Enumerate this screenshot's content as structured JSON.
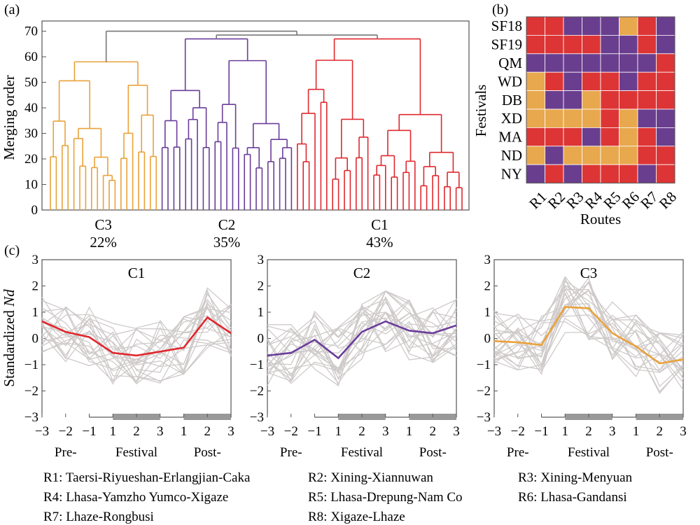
{
  "chart_data": [
    {
      "panel_label": "(a)",
      "type": "dendrogram",
      "ylabel": "Merging order",
      "ylim": [
        0,
        74
      ],
      "yticks": [
        "0",
        "10",
        "20",
        "30",
        "40",
        "50",
        "60",
        "70"
      ],
      "root_merge": 70,
      "clusters": [
        {
          "name": "C3",
          "percent": "22%",
          "color": "#E9A23B",
          "merge_height": 58
        },
        {
          "name": "C2",
          "percent": "35%",
          "color": "#6A3D9A",
          "merge_height": 67
        },
        {
          "name": "C1",
          "percent": "43%",
          "color": "#E0282E",
          "merge_height": 67
        }
      ]
    },
    {
      "panel_label": "(b)",
      "type": "heatmap",
      "xlabel": "Routes",
      "ylabel": "Festivals",
      "routes": [
        "R1",
        "R2",
        "R3",
        "R4",
        "R5",
        "R6",
        "R7",
        "R8"
      ],
      "festivals": [
        "SF18",
        "SF19",
        "QM",
        "WD",
        "DB",
        "XD",
        "MA",
        "ND",
        "NY"
      ],
      "cluster_colors": {
        "C1": "#DD3535",
        "C2": "#6A3E8F",
        "C3": "#E8A84E"
      },
      "cells": [
        [
          "C1",
          "C1",
          "C2",
          "C2",
          "C2",
          "C3",
          "C1",
          "C2"
        ],
        [
          "C1",
          "C1",
          "C1",
          "C1",
          "C2",
          "C2",
          "C1",
          "C2"
        ],
        [
          "C2",
          "C2",
          "C2",
          "C2",
          "C2",
          "C2",
          "C2",
          "C1"
        ],
        [
          "C3",
          "C1",
          "C2",
          "C1",
          "C1",
          "C2",
          "C1",
          "C1"
        ],
        [
          "C3",
          "C2",
          "C2",
          "C3",
          "C1",
          "C1",
          "C1",
          "C1"
        ],
        [
          "C3",
          "C3",
          "C3",
          "C3",
          "C1",
          "C3",
          "C2",
          "C2"
        ],
        [
          "C1",
          "C1",
          "C1",
          "C2",
          "C1",
          "C3",
          "C1",
          "C2"
        ],
        [
          "C3",
          "C2",
          "C3",
          "C3",
          "C3",
          "C3",
          "C1",
          "C1"
        ],
        [
          "C2",
          "C1",
          "C2",
          "C1",
          "C1",
          "C1",
          "C2",
          "C1"
        ]
      ]
    },
    {
      "panel_label": "(c)",
      "type": "line",
      "ylabel_prefix": "Standardized ",
      "ylabel_var": "Nd",
      "ylim": [
        -3,
        3
      ],
      "yticks": [
        "−3",
        "−2",
        "−1",
        "0",
        "1",
        "2",
        "3"
      ],
      "x_ticks": [
        "−3",
        "−2",
        "−1",
        "1",
        "2",
        "3",
        "1",
        "2",
        "3"
      ],
      "period_labels": [
        "Pre-",
        "Festival",
        "Post-"
      ],
      "panels": [
        {
          "name": "C1",
          "color": "#E0282E",
          "highlight": [
            1,
            2,
            2
          ],
          "mean": [
            0.65,
            0.25,
            0.05,
            -0.55,
            -0.65,
            -0.5,
            -0.35,
            0.8,
            0.2
          ]
        },
        {
          "name": "C2",
          "color": "#6A3D9A",
          "highlight": [
            0,
            1,
            2
          ],
          "mean": [
            -0.65,
            -0.55,
            -0.05,
            -0.75,
            0.25,
            0.65,
            0.3,
            0.2,
            0.5
          ]
        },
        {
          "name": "C3",
          "color": "#E9A23B",
          "highlight": [
            0,
            1,
            2
          ],
          "mean": [
            -0.1,
            -0.15,
            -0.25,
            1.2,
            1.15,
            0.2,
            -0.3,
            -0.95,
            -0.8
          ]
        }
      ]
    }
  ],
  "legend": [
    "R1: Taersi-Riyueshan-Erlangjian-Caka",
    "R2: Xining-Xiannuwan",
    "R3: Xining-Menyuan",
    "R4: Lhasa-Yamzho Yumco-Xigaze",
    "R5: Lhasa-Drepung-Nam Co",
    "R6: Lhasa-Gandansi",
    "R7: Lhaze-Rongbusi",
    "R8: Xigaze-Lhaze"
  ]
}
